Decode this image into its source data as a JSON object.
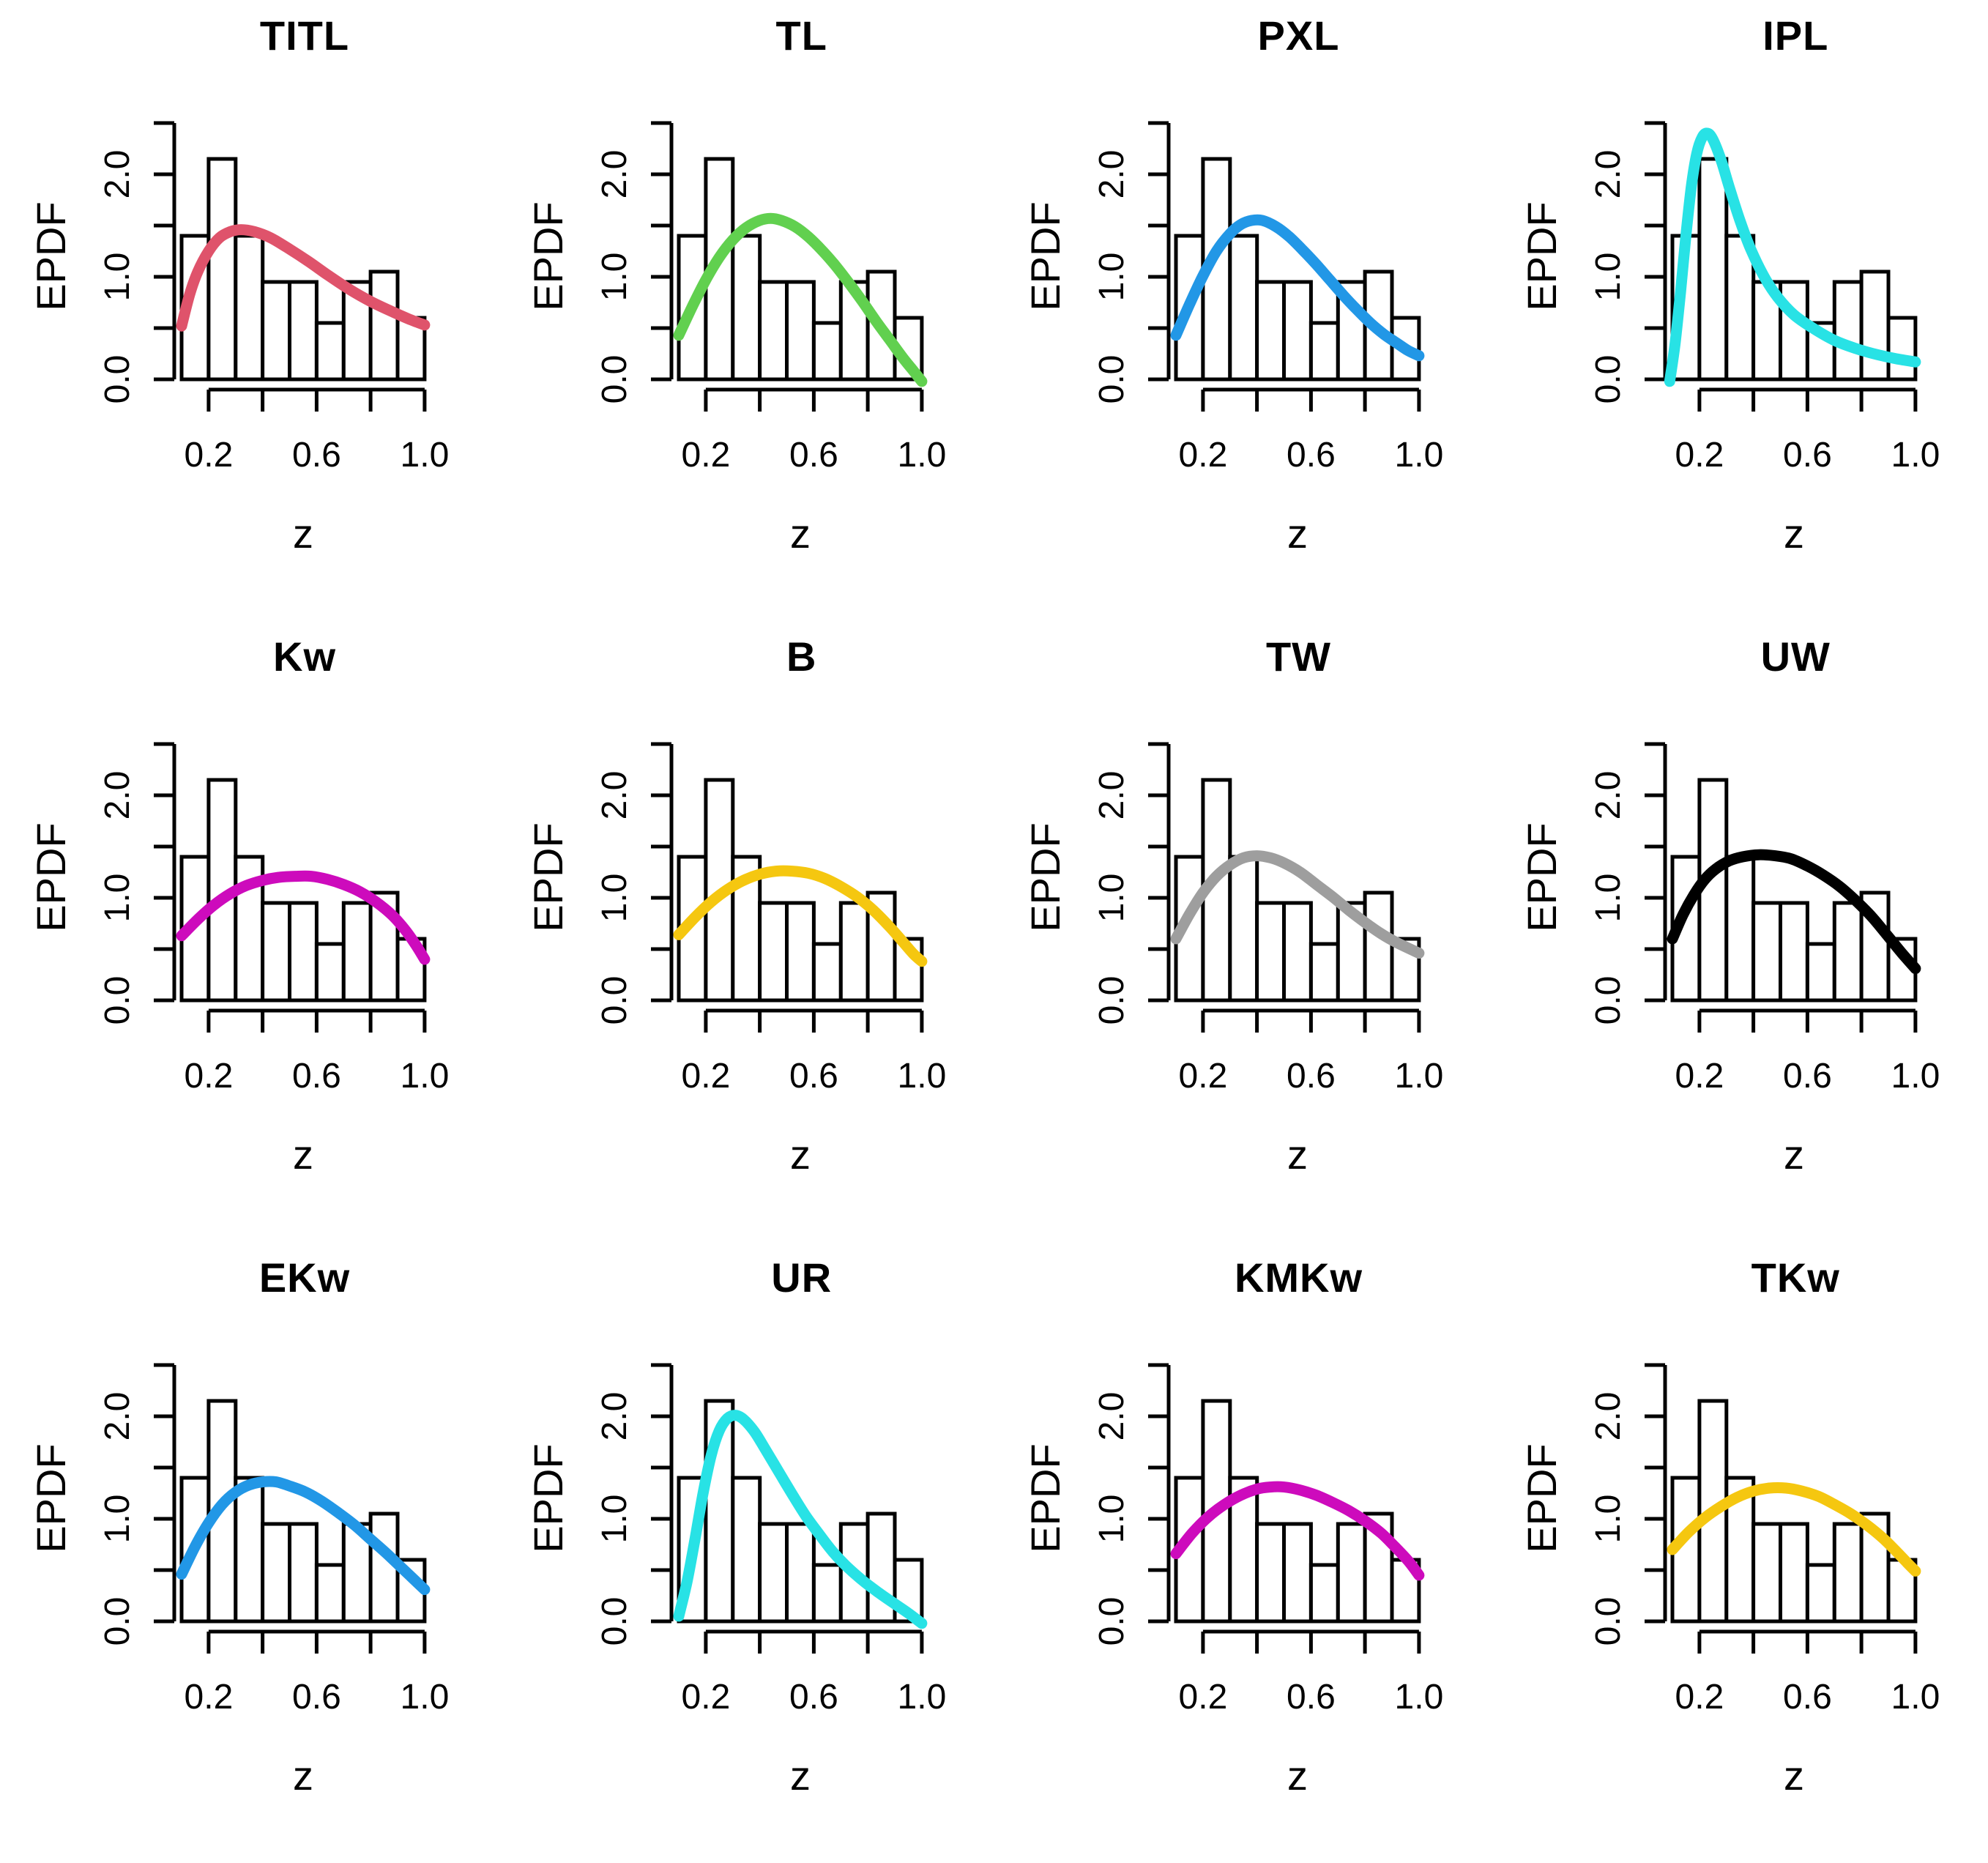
{
  "figure": {
    "rows": 3,
    "columns": 4,
    "background": "#ffffff",
    "panel_titles": [
      "TITL",
      "TL",
      "PXL",
      "IPL",
      "Kw",
      "B",
      "TW",
      "UW",
      "EKw",
      "UR",
      "KMKw",
      "TKw"
    ]
  },
  "axes": {
    "xlabel": "z",
    "ylabel": "EPDF",
    "x_tick_values": [
      0.2,
      0.4,
      0.6,
      0.8,
      1.0
    ],
    "x_tick_labels": [
      "0.2",
      "",
      "0.6",
      "",
      "1.0"
    ],
    "y_tick_values": [
      0.0,
      0.5,
      1.0,
      1.5,
      2.0,
      2.5
    ],
    "y_tick_labels": [
      "0.0",
      "",
      "1.0",
      "",
      "2.0",
      ""
    ],
    "xlim": [
      0.1,
      1.0
    ],
    "ylim": [
      0.0,
      2.5
    ],
    "grid": false,
    "axis_color": "#000000"
  },
  "chart_data": [
    {
      "type": "bar",
      "subtype": "histogram-with-density-curve",
      "title": "TITL",
      "xlabel": "z",
      "ylabel": "EPDF",
      "bin_edges": [
        0.1,
        0.2,
        0.3,
        0.4,
        0.5,
        0.6,
        0.7,
        0.8,
        0.9,
        1.0
      ],
      "densities": [
        1.4,
        2.15,
        1.4,
        0.95,
        0.95,
        0.55,
        0.95,
        1.05,
        0.6
      ],
      "curve_color": "#DF536B",
      "curve_points": [
        [
          0.1,
          0.52
        ],
        [
          0.13,
          0.83
        ],
        [
          0.16,
          1.05
        ],
        [
          0.2,
          1.25
        ],
        [
          0.24,
          1.38
        ],
        [
          0.28,
          1.44
        ],
        [
          0.32,
          1.46
        ],
        [
          0.37,
          1.44
        ],
        [
          0.43,
          1.38
        ],
        [
          0.5,
          1.27
        ],
        [
          0.57,
          1.15
        ],
        [
          0.64,
          1.02
        ],
        [
          0.72,
          0.88
        ],
        [
          0.8,
          0.76
        ],
        [
          0.88,
          0.66
        ],
        [
          0.94,
          0.59
        ],
        [
          1.0,
          0.53
        ]
      ]
    },
    {
      "type": "bar",
      "subtype": "histogram-with-density-curve",
      "title": "TL",
      "xlabel": "z",
      "ylabel": "EPDF",
      "bin_edges": [
        0.1,
        0.2,
        0.3,
        0.4,
        0.5,
        0.6,
        0.7,
        0.8,
        0.9,
        1.0
      ],
      "densities": [
        1.4,
        2.15,
        1.4,
        0.95,
        0.95,
        0.55,
        0.95,
        1.05,
        0.6
      ],
      "curve_color": "#61D04F",
      "curve_points": [
        [
          0.1,
          0.43
        ],
        [
          0.15,
          0.71
        ],
        [
          0.2,
          0.97
        ],
        [
          0.25,
          1.19
        ],
        [
          0.3,
          1.36
        ],
        [
          0.35,
          1.48
        ],
        [
          0.4,
          1.55
        ],
        [
          0.44,
          1.57
        ],
        [
          0.48,
          1.55
        ],
        [
          0.53,
          1.49
        ],
        [
          0.58,
          1.39
        ],
        [
          0.63,
          1.26
        ],
        [
          0.68,
          1.11
        ],
        [
          0.73,
          0.94
        ],
        [
          0.78,
          0.76
        ],
        [
          0.83,
          0.57
        ],
        [
          0.88,
          0.39
        ],
        [
          0.93,
          0.21
        ],
        [
          0.97,
          0.08
        ],
        [
          1.0,
          -0.02
        ]
      ]
    },
    {
      "type": "bar",
      "subtype": "histogram-with-density-curve",
      "title": "PXL",
      "xlabel": "z",
      "ylabel": "EPDF",
      "bin_edges": [
        0.1,
        0.2,
        0.3,
        0.4,
        0.5,
        0.6,
        0.7,
        0.8,
        0.9,
        1.0
      ],
      "densities": [
        1.4,
        2.15,
        1.4,
        0.95,
        0.95,
        0.55,
        0.95,
        1.05,
        0.6
      ],
      "curve_color": "#2297E6",
      "curve_points": [
        [
          0.1,
          0.43
        ],
        [
          0.15,
          0.73
        ],
        [
          0.2,
          1.01
        ],
        [
          0.25,
          1.25
        ],
        [
          0.3,
          1.42
        ],
        [
          0.34,
          1.51
        ],
        [
          0.38,
          1.55
        ],
        [
          0.42,
          1.55
        ],
        [
          0.47,
          1.49
        ],
        [
          0.52,
          1.39
        ],
        [
          0.57,
          1.26
        ],
        [
          0.62,
          1.12
        ],
        [
          0.67,
          0.97
        ],
        [
          0.72,
          0.82
        ],
        [
          0.77,
          0.68
        ],
        [
          0.82,
          0.55
        ],
        [
          0.87,
          0.44
        ],
        [
          0.92,
          0.35
        ],
        [
          0.96,
          0.28
        ],
        [
          1.0,
          0.23
        ]
      ]
    },
    {
      "type": "bar",
      "subtype": "histogram-with-density-curve",
      "title": "IPL",
      "xlabel": "z",
      "ylabel": "EPDF",
      "bin_edges": [
        0.1,
        0.2,
        0.3,
        0.4,
        0.5,
        0.6,
        0.7,
        0.8,
        0.9,
        1.0
      ],
      "densities": [
        1.4,
        2.15,
        1.4,
        0.95,
        0.95,
        0.55,
        0.95,
        1.05,
        0.6
      ],
      "curve_color": "#28E2E5",
      "curve_points": [
        [
          0.09,
          -0.02
        ],
        [
          0.11,
          0.35
        ],
        [
          0.13,
          0.85
        ],
        [
          0.15,
          1.4
        ],
        [
          0.17,
          1.88
        ],
        [
          0.19,
          2.2
        ],
        [
          0.21,
          2.36
        ],
        [
          0.23,
          2.4
        ],
        [
          0.25,
          2.34
        ],
        [
          0.28,
          2.14
        ],
        [
          0.31,
          1.88
        ],
        [
          0.35,
          1.55
        ],
        [
          0.39,
          1.27
        ],
        [
          0.44,
          1.0
        ],
        [
          0.49,
          0.8
        ],
        [
          0.55,
          0.63
        ],
        [
          0.62,
          0.5
        ],
        [
          0.7,
          0.38
        ],
        [
          0.78,
          0.3
        ],
        [
          0.86,
          0.24
        ],
        [
          0.93,
          0.2
        ],
        [
          1.0,
          0.17
        ]
      ]
    },
    {
      "type": "bar",
      "subtype": "histogram-with-density-curve",
      "title": "Kw",
      "xlabel": "z",
      "ylabel": "EPDF",
      "bin_edges": [
        0.1,
        0.2,
        0.3,
        0.4,
        0.5,
        0.6,
        0.7,
        0.8,
        0.9,
        1.0
      ],
      "densities": [
        1.4,
        2.15,
        1.4,
        0.95,
        0.95,
        0.55,
        0.95,
        1.05,
        0.6
      ],
      "curve_color": "#CD0BBC",
      "curve_points": [
        [
          0.1,
          0.63
        ],
        [
          0.16,
          0.79
        ],
        [
          0.22,
          0.93
        ],
        [
          0.28,
          1.04
        ],
        [
          0.34,
          1.12
        ],
        [
          0.4,
          1.17
        ],
        [
          0.46,
          1.2
        ],
        [
          0.52,
          1.21
        ],
        [
          0.58,
          1.21
        ],
        [
          0.64,
          1.18
        ],
        [
          0.7,
          1.13
        ],
        [
          0.76,
          1.06
        ],
        [
          0.82,
          0.96
        ],
        [
          0.88,
          0.83
        ],
        [
          0.93,
          0.68
        ],
        [
          0.97,
          0.53
        ],
        [
          1.0,
          0.4
        ]
      ]
    },
    {
      "type": "bar",
      "subtype": "histogram-with-density-curve",
      "title": "B",
      "xlabel": "z",
      "ylabel": "EPDF",
      "bin_edges": [
        0.1,
        0.2,
        0.3,
        0.4,
        0.5,
        0.6,
        0.7,
        0.8,
        0.9,
        1.0
      ],
      "densities": [
        1.4,
        2.15,
        1.4,
        0.95,
        0.95,
        0.55,
        0.95,
        1.05,
        0.6
      ],
      "curve_color": "#F5C710",
      "curve_points": [
        [
          0.1,
          0.64
        ],
        [
          0.16,
          0.81
        ],
        [
          0.22,
          0.96
        ],
        [
          0.28,
          1.08
        ],
        [
          0.34,
          1.17
        ],
        [
          0.4,
          1.23
        ],
        [
          0.46,
          1.26
        ],
        [
          0.52,
          1.26
        ],
        [
          0.58,
          1.24
        ],
        [
          0.64,
          1.19
        ],
        [
          0.7,
          1.11
        ],
        [
          0.76,
          1.01
        ],
        [
          0.82,
          0.88
        ],
        [
          0.88,
          0.72
        ],
        [
          0.93,
          0.57
        ],
        [
          0.97,
          0.45
        ],
        [
          1.0,
          0.38
        ]
      ]
    },
    {
      "type": "bar",
      "subtype": "histogram-with-density-curve",
      "title": "TW",
      "xlabel": "z",
      "ylabel": "EPDF",
      "bin_edges": [
        0.1,
        0.2,
        0.3,
        0.4,
        0.5,
        0.6,
        0.7,
        0.8,
        0.9,
        1.0
      ],
      "densities": [
        1.4,
        2.15,
        1.4,
        0.95,
        0.95,
        0.55,
        0.95,
        1.05,
        0.6
      ],
      "curve_color": "#9E9E9E",
      "curve_points": [
        [
          0.1,
          0.6
        ],
        [
          0.15,
          0.84
        ],
        [
          0.2,
          1.05
        ],
        [
          0.25,
          1.21
        ],
        [
          0.3,
          1.32
        ],
        [
          0.35,
          1.39
        ],
        [
          0.4,
          1.41
        ],
        [
          0.45,
          1.39
        ],
        [
          0.5,
          1.34
        ],
        [
          0.56,
          1.25
        ],
        [
          0.62,
          1.13
        ],
        [
          0.68,
          1.01
        ],
        [
          0.74,
          0.88
        ],
        [
          0.8,
          0.76
        ],
        [
          0.86,
          0.65
        ],
        [
          0.92,
          0.56
        ],
        [
          1.0,
          0.46
        ]
      ]
    },
    {
      "type": "bar",
      "subtype": "histogram-with-density-curve",
      "title": "UW",
      "xlabel": "z",
      "ylabel": "EPDF",
      "bin_edges": [
        0.1,
        0.2,
        0.3,
        0.4,
        0.5,
        0.6,
        0.7,
        0.8,
        0.9,
        1.0
      ],
      "densities": [
        1.4,
        2.15,
        1.4,
        0.95,
        0.95,
        0.55,
        0.95,
        1.05,
        0.6
      ],
      "curve_color": "#000000",
      "curve_points": [
        [
          0.1,
          0.6
        ],
        [
          0.14,
          0.84
        ],
        [
          0.18,
          1.03
        ],
        [
          0.22,
          1.18
        ],
        [
          0.26,
          1.28
        ],
        [
          0.31,
          1.36
        ],
        [
          0.36,
          1.4
        ],
        [
          0.42,
          1.42
        ],
        [
          0.48,
          1.41
        ],
        [
          0.54,
          1.38
        ],
        [
          0.6,
          1.31
        ],
        [
          0.66,
          1.22
        ],
        [
          0.72,
          1.11
        ],
        [
          0.78,
          0.97
        ],
        [
          0.84,
          0.81
        ],
        [
          0.9,
          0.62
        ],
        [
          0.95,
          0.46
        ],
        [
          1.0,
          0.31
        ]
      ]
    },
    {
      "type": "bar",
      "subtype": "histogram-with-density-curve",
      "title": "EKw",
      "xlabel": "z",
      "ylabel": "EPDF",
      "bin_edges": [
        0.1,
        0.2,
        0.3,
        0.4,
        0.5,
        0.6,
        0.7,
        0.8,
        0.9,
        1.0
      ],
      "densities": [
        1.4,
        2.15,
        1.4,
        0.95,
        0.95,
        0.55,
        0.95,
        1.05,
        0.6
      ],
      "curve_color": "#2297E6",
      "curve_points": [
        [
          0.1,
          0.46
        ],
        [
          0.15,
          0.73
        ],
        [
          0.2,
          0.96
        ],
        [
          0.25,
          1.14
        ],
        [
          0.3,
          1.26
        ],
        [
          0.35,
          1.33
        ],
        [
          0.4,
          1.36
        ],
        [
          0.45,
          1.36
        ],
        [
          0.5,
          1.32
        ],
        [
          0.56,
          1.26
        ],
        [
          0.62,
          1.17
        ],
        [
          0.68,
          1.06
        ],
        [
          0.74,
          0.94
        ],
        [
          0.8,
          0.8
        ],
        [
          0.86,
          0.66
        ],
        [
          0.92,
          0.51
        ],
        [
          0.96,
          0.41
        ],
        [
          1.0,
          0.31
        ]
      ]
    },
    {
      "type": "bar",
      "subtype": "histogram-with-density-curve",
      "title": "UR",
      "xlabel": "z",
      "ylabel": "EPDF",
      "bin_edges": [
        0.1,
        0.2,
        0.3,
        0.4,
        0.5,
        0.6,
        0.7,
        0.8,
        0.9,
        1.0
      ],
      "densities": [
        1.4,
        2.15,
        1.4,
        0.95,
        0.95,
        0.55,
        0.95,
        1.05,
        0.6
      ],
      "curve_color": "#28E2E5",
      "curve_points": [
        [
          0.1,
          0.05
        ],
        [
          0.13,
          0.38
        ],
        [
          0.16,
          0.8
        ],
        [
          0.19,
          1.25
        ],
        [
          0.22,
          1.62
        ],
        [
          0.25,
          1.86
        ],
        [
          0.28,
          1.98
        ],
        [
          0.31,
          2.01
        ],
        [
          0.34,
          1.97
        ],
        [
          0.38,
          1.85
        ],
        [
          0.42,
          1.68
        ],
        [
          0.47,
          1.46
        ],
        [
          0.52,
          1.24
        ],
        [
          0.57,
          1.03
        ],
        [
          0.62,
          0.85
        ],
        [
          0.67,
          0.68
        ],
        [
          0.72,
          0.54
        ],
        [
          0.78,
          0.4
        ],
        [
          0.84,
          0.28
        ],
        [
          0.9,
          0.17
        ],
        [
          0.95,
          0.08
        ],
        [
          1.0,
          -0.02
        ]
      ]
    },
    {
      "type": "bar",
      "subtype": "histogram-with-density-curve",
      "title": "KMKw",
      "xlabel": "z",
      "ylabel": "EPDF",
      "bin_edges": [
        0.1,
        0.2,
        0.3,
        0.4,
        0.5,
        0.6,
        0.7,
        0.8,
        0.9,
        1.0
      ],
      "densities": [
        1.4,
        2.15,
        1.4,
        0.95,
        0.95,
        0.55,
        0.95,
        1.05,
        0.6
      ],
      "curve_color": "#CD0BBC",
      "curve_points": [
        [
          0.1,
          0.66
        ],
        [
          0.16,
          0.86
        ],
        [
          0.22,
          1.02
        ],
        [
          0.28,
          1.14
        ],
        [
          0.34,
          1.23
        ],
        [
          0.4,
          1.29
        ],
        [
          0.45,
          1.31
        ],
        [
          0.5,
          1.31
        ],
        [
          0.56,
          1.28
        ],
        [
          0.62,
          1.23
        ],
        [
          0.68,
          1.16
        ],
        [
          0.74,
          1.08
        ],
        [
          0.8,
          0.98
        ],
        [
          0.86,
          0.86
        ],
        [
          0.91,
          0.73
        ],
        [
          0.96,
          0.59
        ],
        [
          1.0,
          0.45
        ]
      ]
    },
    {
      "type": "bar",
      "subtype": "histogram-with-density-curve",
      "title": "TKw",
      "xlabel": "z",
      "ylabel": "EPDF",
      "bin_edges": [
        0.1,
        0.2,
        0.3,
        0.4,
        0.5,
        0.6,
        0.7,
        0.8,
        0.9,
        1.0
      ],
      "densities": [
        1.4,
        2.15,
        1.4,
        0.95,
        0.95,
        0.55,
        0.95,
        1.05,
        0.6
      ],
      "curve_color": "#F5C710",
      "curve_points": [
        [
          0.1,
          0.7
        ],
        [
          0.16,
          0.87
        ],
        [
          0.22,
          1.01
        ],
        [
          0.28,
          1.12
        ],
        [
          0.34,
          1.21
        ],
        [
          0.4,
          1.27
        ],
        [
          0.46,
          1.3
        ],
        [
          0.52,
          1.3
        ],
        [
          0.58,
          1.27
        ],
        [
          0.64,
          1.22
        ],
        [
          0.7,
          1.14
        ],
        [
          0.76,
          1.05
        ],
        [
          0.82,
          0.94
        ],
        [
          0.88,
          0.81
        ],
        [
          0.93,
          0.68
        ],
        [
          0.97,
          0.57
        ],
        [
          1.0,
          0.49
        ]
      ]
    }
  ]
}
